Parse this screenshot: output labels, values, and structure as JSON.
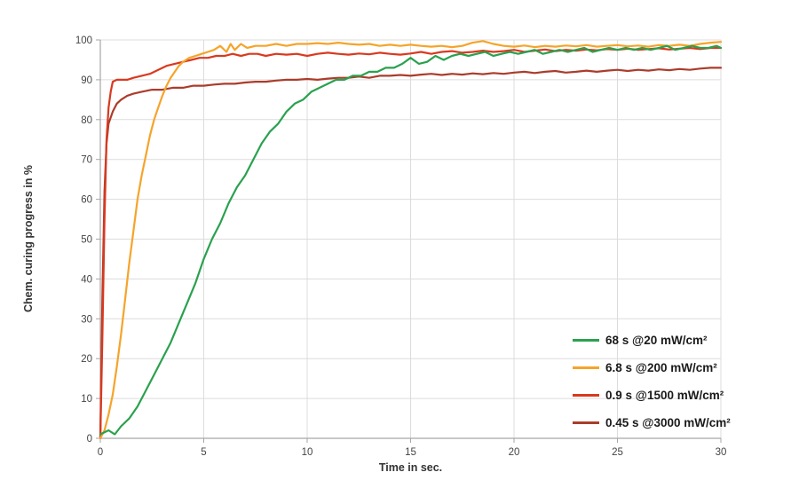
{
  "chart_data": {
    "type": "line",
    "title": "",
    "xlabel": "Time in sec.",
    "ylabel": "Chem. curing progress in %",
    "xlim": [
      0,
      30
    ],
    "ylim": [
      0,
      100
    ],
    "xticks": [
      0,
      5,
      10,
      15,
      20,
      25,
      30
    ],
    "yticks": [
      0,
      10,
      20,
      30,
      40,
      50,
      60,
      70,
      80,
      90,
      100
    ],
    "grid": true,
    "legend_position": "lower right",
    "axis_color": "#a6a6a6",
    "grid_color": "#dcdcdc",
    "tick_label_color": "#444444",
    "series": [
      {
        "name": "68 s @20 mW/cm²",
        "color": "#2aa14e",
        "points": [
          [
            0,
            1
          ],
          [
            0.4,
            2
          ],
          [
            0.7,
            1
          ],
          [
            1,
            3
          ],
          [
            1.4,
            5
          ],
          [
            1.8,
            8
          ],
          [
            2.2,
            12
          ],
          [
            2.6,
            16
          ],
          [
            3,
            20
          ],
          [
            3.4,
            24
          ],
          [
            3.8,
            29
          ],
          [
            4.2,
            34
          ],
          [
            4.6,
            39
          ],
          [
            5,
            45
          ],
          [
            5.4,
            50
          ],
          [
            5.8,
            54
          ],
          [
            6.2,
            59
          ],
          [
            6.6,
            63
          ],
          [
            7,
            66
          ],
          [
            7.4,
            70
          ],
          [
            7.8,
            74
          ],
          [
            8.2,
            77
          ],
          [
            8.6,
            79
          ],
          [
            9,
            82
          ],
          [
            9.4,
            84
          ],
          [
            9.8,
            85
          ],
          [
            10.2,
            87
          ],
          [
            10.6,
            88
          ],
          [
            11,
            89
          ],
          [
            11.4,
            90
          ],
          [
            11.8,
            90
          ],
          [
            12.2,
            91
          ],
          [
            12.6,
            91
          ],
          [
            13,
            92
          ],
          [
            13.4,
            92
          ],
          [
            13.8,
            93
          ],
          [
            14.2,
            93
          ],
          [
            14.6,
            94
          ],
          [
            15,
            95.5
          ],
          [
            15.4,
            94
          ],
          [
            15.8,
            94.5
          ],
          [
            16.2,
            96
          ],
          [
            16.6,
            95
          ],
          [
            17,
            96
          ],
          [
            17.4,
            96.5
          ],
          [
            17.8,
            96
          ],
          [
            18.2,
            96.5
          ],
          [
            18.6,
            97
          ],
          [
            19,
            96
          ],
          [
            19.4,
            96.5
          ],
          [
            19.8,
            97
          ],
          [
            20.2,
            96.5
          ],
          [
            20.6,
            97
          ],
          [
            21,
            97.5
          ],
          [
            21.4,
            96.5
          ],
          [
            21.8,
            97
          ],
          [
            22.2,
            97.5
          ],
          [
            22.6,
            97
          ],
          [
            23,
            97.5
          ],
          [
            23.4,
            98
          ],
          [
            23.8,
            97
          ],
          [
            24.2,
            97.5
          ],
          [
            24.6,
            98
          ],
          [
            25,
            97.5
          ],
          [
            25.4,
            98
          ],
          [
            25.8,
            97.5
          ],
          [
            26.2,
            98
          ],
          [
            26.6,
            97.5
          ],
          [
            27,
            98
          ],
          [
            27.4,
            98.5
          ],
          [
            27.8,
            97.5
          ],
          [
            28.2,
            98
          ],
          [
            28.6,
            98.5
          ],
          [
            29,
            98
          ],
          [
            29.4,
            98
          ],
          [
            29.8,
            98.5
          ],
          [
            30,
            98
          ]
        ]
      },
      {
        "name": "6.8 s @200 mW/cm²",
        "color": "#f5a42a",
        "points": [
          [
            0,
            0
          ],
          [
            0.2,
            2
          ],
          [
            0.4,
            6
          ],
          [
            0.6,
            11
          ],
          [
            0.8,
            18
          ],
          [
            1,
            26
          ],
          [
            1.2,
            35
          ],
          [
            1.4,
            44
          ],
          [
            1.6,
            52
          ],
          [
            1.8,
            60
          ],
          [
            2,
            66
          ],
          [
            2.2,
            71
          ],
          [
            2.4,
            76
          ],
          [
            2.6,
            80
          ],
          [
            2.8,
            83
          ],
          [
            3,
            86
          ],
          [
            3.2,
            88.5
          ],
          [
            3.4,
            90.5
          ],
          [
            3.6,
            92
          ],
          [
            3.8,
            93.5
          ],
          [
            4,
            94.5
          ],
          [
            4.3,
            95.5
          ],
          [
            4.6,
            96
          ],
          [
            4.9,
            96.5
          ],
          [
            5.2,
            97
          ],
          [
            5.5,
            97.5
          ],
          [
            5.8,
            98.5
          ],
          [
            6.1,
            97
          ],
          [
            6.3,
            99
          ],
          [
            6.5,
            97.5
          ],
          [
            6.8,
            99
          ],
          [
            7.1,
            98
          ],
          [
            7.5,
            98.5
          ],
          [
            8,
            98.5
          ],
          [
            8.5,
            99
          ],
          [
            9,
            98.5
          ],
          [
            9.5,
            99
          ],
          [
            10,
            99
          ],
          [
            10.5,
            99.2
          ],
          [
            11,
            99
          ],
          [
            11.5,
            99.3
          ],
          [
            12,
            99
          ],
          [
            12.5,
            98.8
          ],
          [
            13,
            99
          ],
          [
            13.5,
            98.5
          ],
          [
            14,
            98.8
          ],
          [
            14.5,
            98.5
          ],
          [
            15,
            98.8
          ],
          [
            15.5,
            98.5
          ],
          [
            16,
            98.3
          ],
          [
            16.5,
            98.5
          ],
          [
            17,
            98.2
          ],
          [
            17.5,
            98.5
          ],
          [
            18,
            99.3
          ],
          [
            18.5,
            99.7
          ],
          [
            19,
            99
          ],
          [
            19.5,
            98.5
          ],
          [
            20,
            98.3
          ],
          [
            20.5,
            98.6
          ],
          [
            21,
            98.2
          ],
          [
            21.5,
            98.5
          ],
          [
            22,
            98.3
          ],
          [
            22.5,
            98.6
          ],
          [
            23,
            98.4
          ],
          [
            23.5,
            98.7
          ],
          [
            24,
            98.3
          ],
          [
            24.5,
            98.5
          ],
          [
            25,
            98.7
          ],
          [
            25.5,
            98.4
          ],
          [
            26,
            98.6
          ],
          [
            26.5,
            98.3
          ],
          [
            27,
            98.7
          ],
          [
            27.5,
            98.5
          ],
          [
            28,
            98.8
          ],
          [
            28.5,
            98.5
          ],
          [
            29,
            99
          ],
          [
            29.5,
            99.3
          ],
          [
            30,
            99.5
          ]
        ]
      },
      {
        "name": "0.9 s @1500 mW/cm²",
        "color": "#d9391f",
        "points": [
          [
            0,
            0
          ],
          [
            0.1,
            25
          ],
          [
            0.2,
            55
          ],
          [
            0.3,
            75
          ],
          [
            0.4,
            83
          ],
          [
            0.5,
            87
          ],
          [
            0.6,
            89.5
          ],
          [
            0.8,
            90
          ],
          [
            1,
            90
          ],
          [
            1.3,
            90
          ],
          [
            1.6,
            90.5
          ],
          [
            2,
            91
          ],
          [
            2.4,
            91.5
          ],
          [
            2.8,
            92.5
          ],
          [
            3.2,
            93.5
          ],
          [
            3.6,
            94
          ],
          [
            4,
            94.5
          ],
          [
            4.4,
            95
          ],
          [
            4.8,
            95.5
          ],
          [
            5.2,
            95.5
          ],
          [
            5.6,
            96
          ],
          [
            6,
            96
          ],
          [
            6.4,
            96.5
          ],
          [
            6.8,
            96
          ],
          [
            7.2,
            96.5
          ],
          [
            7.6,
            96.5
          ],
          [
            8,
            96
          ],
          [
            8.5,
            96.5
          ],
          [
            9,
            96.3
          ],
          [
            9.5,
            96.5
          ],
          [
            10,
            96
          ],
          [
            10.5,
            96.5
          ],
          [
            11,
            96.8
          ],
          [
            11.5,
            96.5
          ],
          [
            12,
            96.3
          ],
          [
            12.5,
            96.6
          ],
          [
            13,
            96.4
          ],
          [
            13.5,
            96.8
          ],
          [
            14,
            96.5
          ],
          [
            14.5,
            96.3
          ],
          [
            15,
            96.6
          ],
          [
            15.5,
            97
          ],
          [
            16,
            96.5
          ],
          [
            16.5,
            97
          ],
          [
            17,
            97.2
          ],
          [
            17.5,
            96.8
          ],
          [
            18,
            97
          ],
          [
            18.5,
            97.3
          ],
          [
            19,
            97
          ],
          [
            19.5,
            97.2
          ],
          [
            20,
            97.5
          ],
          [
            20.5,
            97
          ],
          [
            21,
            97.3
          ],
          [
            21.5,
            97.6
          ],
          [
            22,
            97.2
          ],
          [
            22.5,
            97.5
          ],
          [
            23,
            97.3
          ],
          [
            23.5,
            97.6
          ],
          [
            24,
            97.4
          ],
          [
            24.5,
            97.7
          ],
          [
            25,
            97.5
          ],
          [
            25.5,
            97.8
          ],
          [
            26,
            97.5
          ],
          [
            26.5,
            97.7
          ],
          [
            27,
            97.9
          ],
          [
            27.5,
            97.6
          ],
          [
            28,
            97.8
          ],
          [
            28.5,
            98
          ],
          [
            29,
            97.7
          ],
          [
            29.5,
            98
          ],
          [
            30,
            98
          ]
        ]
      },
      {
        "name": "0.45 s @3000 mW/cm²",
        "color": "#ab3c2b",
        "points": [
          [
            0,
            0
          ],
          [
            0.1,
            35
          ],
          [
            0.2,
            62
          ],
          [
            0.3,
            74
          ],
          [
            0.4,
            79
          ],
          [
            0.6,
            82
          ],
          [
            0.8,
            84
          ],
          [
            1,
            85
          ],
          [
            1.3,
            86
          ],
          [
            1.6,
            86.5
          ],
          [
            2,
            87
          ],
          [
            2.5,
            87.5
          ],
          [
            3,
            87.5
          ],
          [
            3.5,
            88
          ],
          [
            4,
            88
          ],
          [
            4.5,
            88.5
          ],
          [
            5,
            88.5
          ],
          [
            5.5,
            88.8
          ],
          [
            6,
            89
          ],
          [
            6.5,
            89
          ],
          [
            7,
            89.3
          ],
          [
            7.5,
            89.5
          ],
          [
            8,
            89.5
          ],
          [
            8.5,
            89.8
          ],
          [
            9,
            90
          ],
          [
            9.5,
            90
          ],
          [
            10,
            90.2
          ],
          [
            10.5,
            90
          ],
          [
            11,
            90.3
          ],
          [
            11.5,
            90.5
          ],
          [
            12,
            90.5
          ],
          [
            12.5,
            90.8
          ],
          [
            13,
            90.5
          ],
          [
            13.5,
            91
          ],
          [
            14,
            91
          ],
          [
            14.5,
            91.2
          ],
          [
            15,
            91
          ],
          [
            15.5,
            91.3
          ],
          [
            16,
            91.5
          ],
          [
            16.5,
            91.2
          ],
          [
            17,
            91.5
          ],
          [
            17.5,
            91.3
          ],
          [
            18,
            91.6
          ],
          [
            18.5,
            91.4
          ],
          [
            19,
            91.7
          ],
          [
            19.5,
            91.5
          ],
          [
            20,
            91.8
          ],
          [
            20.5,
            92
          ],
          [
            21,
            91.7
          ],
          [
            21.5,
            92
          ],
          [
            22,
            92.2
          ],
          [
            22.5,
            91.8
          ],
          [
            23,
            92
          ],
          [
            23.5,
            92.3
          ],
          [
            24,
            92
          ],
          [
            24.5,
            92.3
          ],
          [
            25,
            92.5
          ],
          [
            25.5,
            92.2
          ],
          [
            26,
            92.5
          ],
          [
            26.5,
            92.3
          ],
          [
            27,
            92.6
          ],
          [
            27.5,
            92.4
          ],
          [
            28,
            92.7
          ],
          [
            28.5,
            92.5
          ],
          [
            29,
            92.8
          ],
          [
            29.5,
            93
          ],
          [
            30,
            93
          ]
        ]
      }
    ]
  }
}
